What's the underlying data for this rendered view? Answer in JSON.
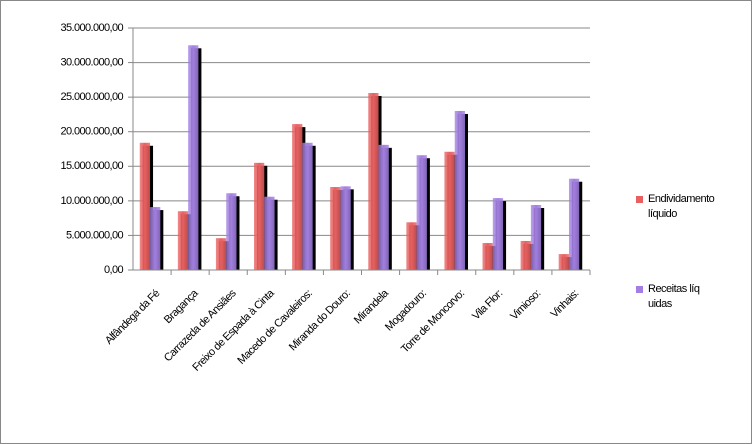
{
  "chart_data": {
    "type": "bar",
    "categories": [
      "Alfândega da Fé",
      "Bragança",
      "Carrazeda de Ansiães",
      "Freixo de Espada à Cinta",
      "Macedo de Cavaleiros:",
      "Miranda do Douro:",
      "Mirandela",
      "Mogadouro:",
      "Torre de Moncorvo:",
      "Vila Flor:",
      "Vimioso:",
      "Vinhais:"
    ],
    "series": [
      {
        "name": "Endividamento líquido",
        "color": "#e86060",
        "values": [
          18400000,
          8500000,
          4600000,
          15500000,
          21100000,
          12000000,
          25600000,
          6900000,
          17100000,
          3900000,
          4200000,
          2300000
        ]
      },
      {
        "name": "Receitas líquidas",
        "color": "#a27fe0",
        "values": [
          9100000,
          32500000,
          11100000,
          10600000,
          18400000,
          12100000,
          18100000,
          16600000,
          23000000,
          10400000,
          9400000,
          13200000
        ]
      }
    ],
    "ylim": [
      0,
      35000000
    ],
    "yticks": [
      {
        "value": 0,
        "label": "0,00"
      },
      {
        "value": 5000000,
        "label": "5.000.000,00"
      },
      {
        "value": 10000000,
        "label": "10.000.000,00"
      },
      {
        "value": 15000000,
        "label": "15.000.000,00"
      },
      {
        "value": 20000000,
        "label": "20.000.000,00"
      },
      {
        "value": 25000000,
        "label": "25.000.000,00"
      },
      {
        "value": 30000000,
        "label": "30.000.000,00"
      },
      {
        "value": 35000000,
        "label": "35.000.000,00"
      }
    ],
    "grid": true,
    "legend": "right"
  }
}
